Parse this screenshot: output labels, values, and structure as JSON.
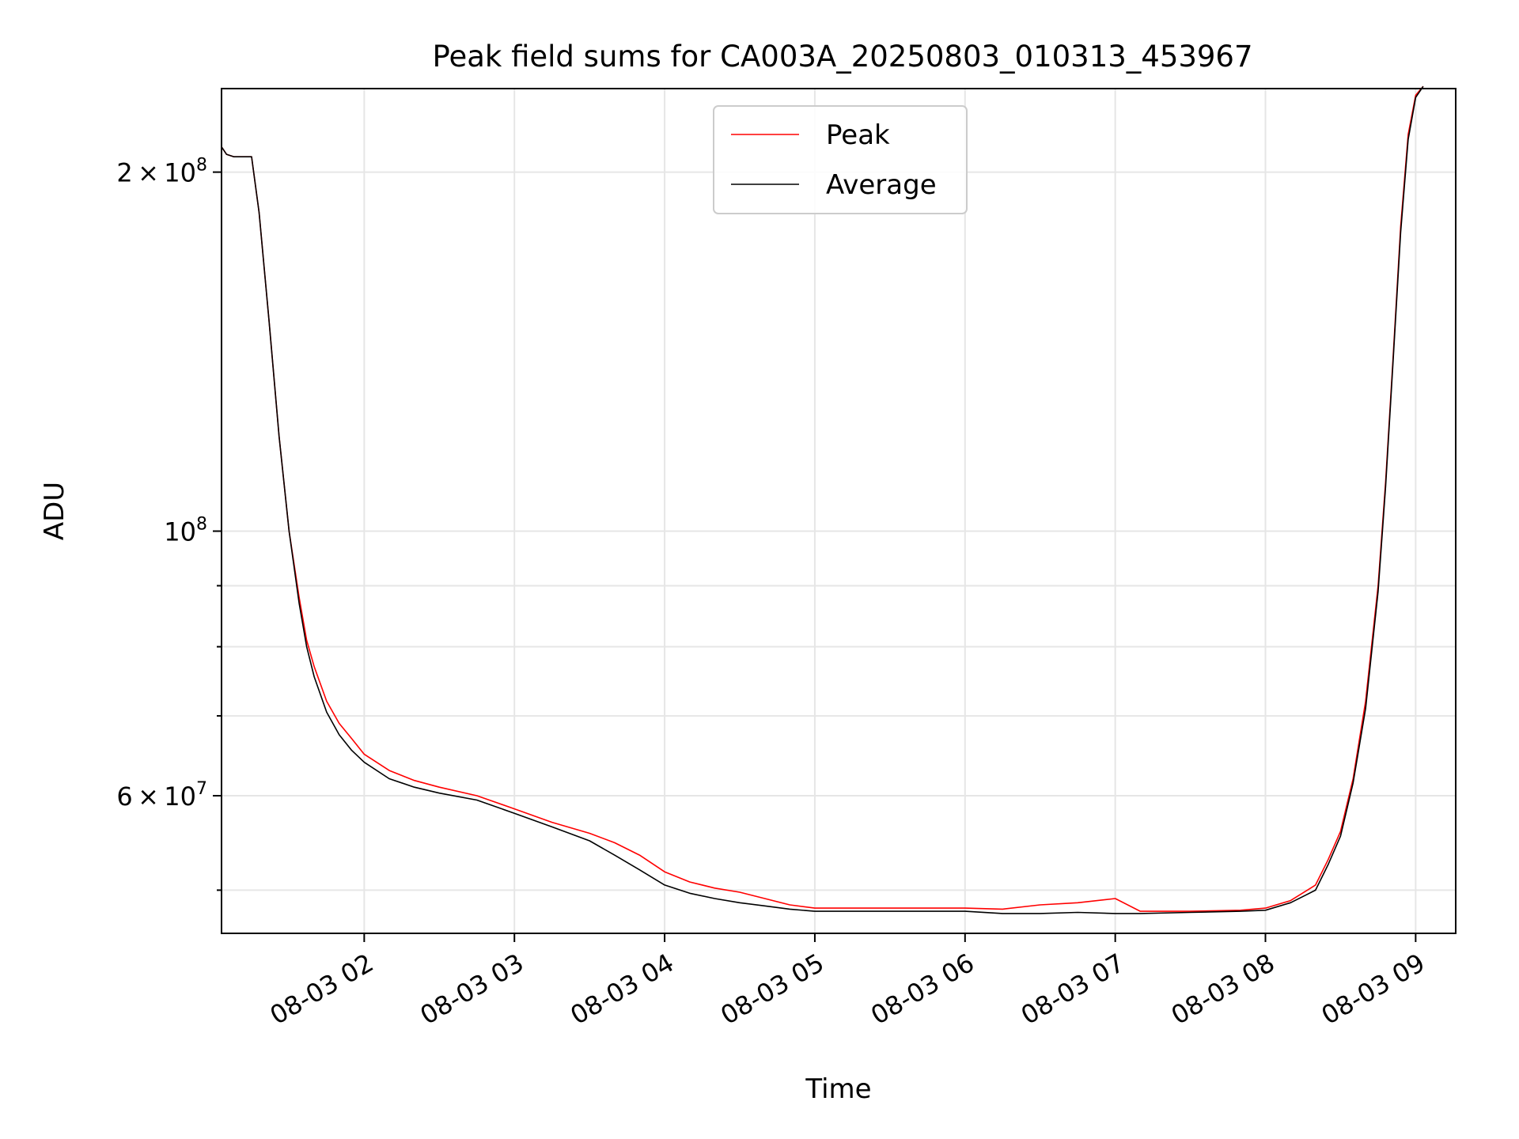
{
  "chart_data": {
    "type": "line",
    "title": "Peak field sums for CA003A_20250803_010313_453967",
    "xlabel": "Time",
    "ylabel": "ADU",
    "x_scale": "time",
    "y_scale": "log",
    "xlim": [
      "08-03 01:03",
      "08-03 09:16"
    ],
    "ylim": [
      46000000,
      235000000
    ],
    "x_ticks": [
      "08-03 02",
      "08-03 03",
      "08-03 04",
      "08-03 05",
      "08-03 06",
      "08-03 07",
      "08-03 08",
      "08-03 09"
    ],
    "y_major_ticks": [
      {
        "value": 100000000,
        "base": "10",
        "exp": "8"
      },
      {
        "mant": "2",
        "value": 200000000,
        "base": "10",
        "exp": "8"
      },
      {
        "mant": "6",
        "value": 60000000,
        "base": "10",
        "exp": "7"
      }
    ],
    "y_minor_ticks": [
      50000000,
      70000000,
      80000000,
      90000000
    ],
    "grid": true,
    "legend_position": "top-center",
    "series": [
      {
        "name": "Peak",
        "color": "#ff0000",
        "x": [
          "08-03 01:03",
          "08-03 01:05",
          "08-03 01:08",
          "08-03 01:12",
          "08-03 01:15",
          "08-03 01:18",
          "08-03 01:22",
          "08-03 01:26",
          "08-03 01:30",
          "08-03 01:34",
          "08-03 01:37",
          "08-03 01:40",
          "08-03 01:45",
          "08-03 01:50",
          "08-03 01:55",
          "08-03 02:00",
          "08-03 02:10",
          "08-03 02:20",
          "08-03 02:30",
          "08-03 02:45",
          "08-03 03:00",
          "08-03 03:15",
          "08-03 03:30",
          "08-03 03:40",
          "08-03 03:50",
          "08-03 04:00",
          "08-03 04:10",
          "08-03 04:20",
          "08-03 04:30",
          "08-03 04:40",
          "08-03 04:50",
          "08-03 05:00",
          "08-03 05:20",
          "08-03 05:40",
          "08-03 06:00",
          "08-03 06:15",
          "08-03 06:30",
          "08-03 06:45",
          "08-03 07:00",
          "08-03 07:10",
          "08-03 07:30",
          "08-03 07:50",
          "08-03 08:00",
          "08-03 08:10",
          "08-03 08:20",
          "08-03 08:25",
          "08-03 08:30",
          "08-03 08:35",
          "08-03 08:40",
          "08-03 08:45",
          "08-03 08:48",
          "08-03 08:51",
          "08-03 08:54",
          "08-03 08:57",
          "08-03 09:00",
          "08-03 09:03"
        ],
        "values": [
          210000000,
          207000000,
          206000000,
          206000000,
          206000000,
          185000000,
          150000000,
          120000000,
          100000000,
          88000000,
          81000000,
          77000000,
          72000000,
          69000000,
          67000000,
          65000000,
          63000000,
          61800000,
          61000000,
          60000000,
          58500000,
          57000000,
          55800000,
          54800000,
          53500000,
          51800000,
          50800000,
          50200000,
          49800000,
          49200000,
          48600000,
          48300000,
          48300000,
          48300000,
          48300000,
          48200000,
          48600000,
          48800000,
          49200000,
          48000000,
          48000000,
          48100000,
          48300000,
          49000000,
          50500000,
          53000000,
          56000000,
          62000000,
          72000000,
          90000000,
          110000000,
          140000000,
          180000000,
          215000000,
          232000000,
          236000000
        ]
      },
      {
        "name": "Average",
        "color": "#000000",
        "x": [
          "08-03 01:03",
          "08-03 01:05",
          "08-03 01:08",
          "08-03 01:12",
          "08-03 01:15",
          "08-03 01:18",
          "08-03 01:22",
          "08-03 01:26",
          "08-03 01:30",
          "08-03 01:34",
          "08-03 01:37",
          "08-03 01:40",
          "08-03 01:45",
          "08-03 01:50",
          "08-03 01:55",
          "08-03 02:00",
          "08-03 02:10",
          "08-03 02:20",
          "08-03 02:30",
          "08-03 02:45",
          "08-03 03:00",
          "08-03 03:15",
          "08-03 03:30",
          "08-03 03:40",
          "08-03 03:50",
          "08-03 04:00",
          "08-03 04:10",
          "08-03 04:20",
          "08-03 04:30",
          "08-03 04:40",
          "08-03 04:50",
          "08-03 05:00",
          "08-03 05:20",
          "08-03 05:40",
          "08-03 06:00",
          "08-03 06:15",
          "08-03 06:30",
          "08-03 06:45",
          "08-03 07:00",
          "08-03 07:10",
          "08-03 07:30",
          "08-03 07:50",
          "08-03 08:00",
          "08-03 08:10",
          "08-03 08:20",
          "08-03 08:25",
          "08-03 08:30",
          "08-03 08:35",
          "08-03 08:40",
          "08-03 08:45",
          "08-03 08:48",
          "08-03 08:51",
          "08-03 08:54",
          "08-03 08:57",
          "08-03 09:00",
          "08-03 09:03"
        ],
        "values": [
          210000000,
          207000000,
          206000000,
          206000000,
          206000000,
          185000000,
          150000000,
          120000000,
          100000000,
          87000000,
          80000000,
          75500000,
          70500000,
          67500000,
          65500000,
          64000000,
          62000000,
          61000000,
          60300000,
          59500000,
          58000000,
          56500000,
          55000000,
          53500000,
          52000000,
          50500000,
          49700000,
          49200000,
          48800000,
          48500000,
          48200000,
          48000000,
          48000000,
          48000000,
          48000000,
          47800000,
          47800000,
          47900000,
          47800000,
          47800000,
          47900000,
          48000000,
          48100000,
          48800000,
          50000000,
          52500000,
          55500000,
          61500000,
          71000000,
          89000000,
          109000000,
          139000000,
          178000000,
          213000000,
          231000000,
          236000000
        ]
      }
    ]
  }
}
